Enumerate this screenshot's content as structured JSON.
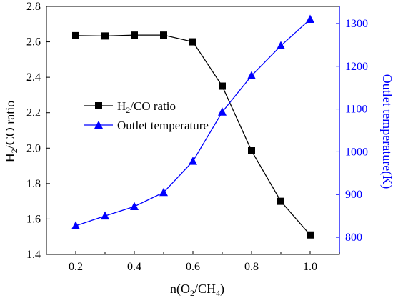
{
  "chart_data": {
    "type": "line",
    "title": "",
    "xlabel": {
      "prefix": "n(O",
      "sub1": "2",
      "mid": "/CH",
      "sub2": "4",
      "suffix": ")"
    },
    "ylabel_left": {
      "prefix": "H",
      "sub": "2",
      "suffix": "/CO ratio"
    },
    "ylabel_right": "Outlet temperature(K)",
    "x": [
      0.2,
      0.3,
      0.4,
      0.5,
      0.6,
      0.7,
      0.8,
      0.9,
      1.0
    ],
    "xlim": [
      0.1,
      1.1
    ],
    "ylim_left": [
      1.4,
      2.8
    ],
    "ylim_right": [
      760,
      1340
    ],
    "xticks": [
      "0.2",
      "0.4",
      "0.6",
      "0.8",
      "1.0"
    ],
    "yticks_left": [
      "1.4",
      "1.6",
      "1.8",
      "2.0",
      "2.2",
      "2.4",
      "2.6",
      "2.8"
    ],
    "yticks_right": [
      "800",
      "900",
      "1000",
      "1100",
      "1200",
      "1300"
    ],
    "grid": false,
    "legend_position": "middle-left",
    "series": [
      {
        "name": {
          "prefix": "H",
          "sub": "2",
          "suffix": "/CO ratio"
        },
        "axis": "left",
        "marker": "square",
        "color": "#000000",
        "values": [
          2.635,
          2.633,
          2.638,
          2.638,
          2.6,
          2.35,
          1.985,
          1.7,
          1.51
        ]
      },
      {
        "name": "Outlet temperature",
        "axis": "right",
        "marker": "triangle",
        "color": "#0000ff",
        "values": [
          827,
          850,
          872,
          905,
          978,
          1093,
          1178,
          1248,
          1310
        ]
      }
    ]
  }
}
